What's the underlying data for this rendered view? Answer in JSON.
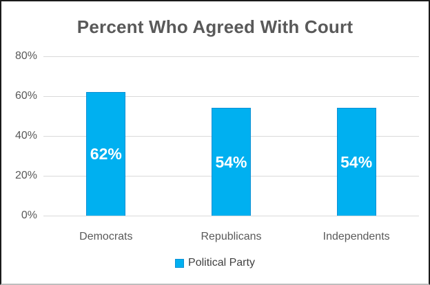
{
  "chart_data": {
    "type": "bar",
    "title": "Percent Who Agreed With Court",
    "categories": [
      "Democrats",
      "Republicans",
      "Independents"
    ],
    "series": [
      {
        "name": "Political Party",
        "values": [
          62,
          54,
          54
        ]
      }
    ],
    "data_labels": [
      "62%",
      "54%",
      "54%"
    ],
    "xlabel": "",
    "ylabel": "",
    "ylim": [
      0,
      80
    ],
    "y_ticks": [
      {
        "value": 0,
        "label": "0%"
      },
      {
        "value": 20,
        "label": "20%"
      },
      {
        "value": 40,
        "label": "40%"
      },
      {
        "value": 60,
        "label": "60%"
      },
      {
        "value": 80,
        "label": "80%"
      }
    ],
    "grid": true,
    "legend": {
      "position": "bottom",
      "entries": [
        "Political Party"
      ]
    },
    "colors": {
      "bar_fill": "#00B0F0",
      "bar_border": "#0B8FD4",
      "title_text": "#595959",
      "axis_text": "#595959",
      "gridline": "#D9D9D9",
      "data_label_text": "#FFFFFF",
      "legend_text": "#404040",
      "frame_border": "#1B1B1B"
    }
  }
}
